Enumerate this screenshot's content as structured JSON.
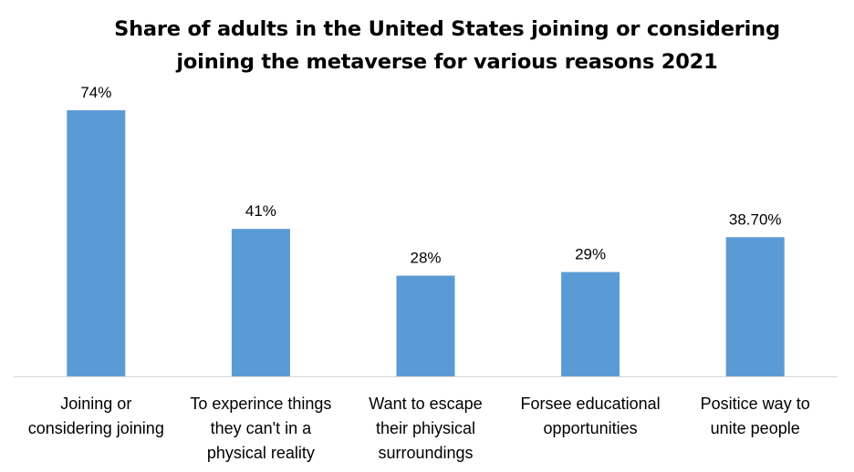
{
  "chart_data": {
    "type": "bar",
    "title": "Share of adults in the United States joining or considering joining the metaverse for various reasons 2021",
    "title_lines": [
      "Share of adults in the United States joining or considering",
      "joining the metaverse for various reasons 2021"
    ],
    "categories": [
      "Joining or considering joining",
      "To experince things they can't in a physical reality",
      "Want to escape their phiysical surroundings",
      "Forsee educational opportunities",
      "Positice way to unite people"
    ],
    "category_lines": [
      [
        "Joining or",
        "considering joining"
      ],
      [
        "To experince things",
        "they can't in a",
        "physical reality"
      ],
      [
        "Want to escape",
        "their phiysical",
        "surroundings"
      ],
      [
        "Forsee educational",
        "opportunities"
      ],
      [
        "Positice way to",
        "unite people"
      ]
    ],
    "values": [
      74,
      41,
      28,
      29,
      38.7
    ],
    "data_labels": [
      "74%",
      "41%",
      "28%",
      "29%",
      "38.70%"
    ],
    "unit": "%",
    "ylim": [
      0,
      80
    ],
    "xlabel": "",
    "ylabel": "",
    "grid": false,
    "legend": "none",
    "colors": {
      "bar": "#5b9bd5",
      "axis": "#d9d9d9",
      "text": "#000000"
    }
  }
}
